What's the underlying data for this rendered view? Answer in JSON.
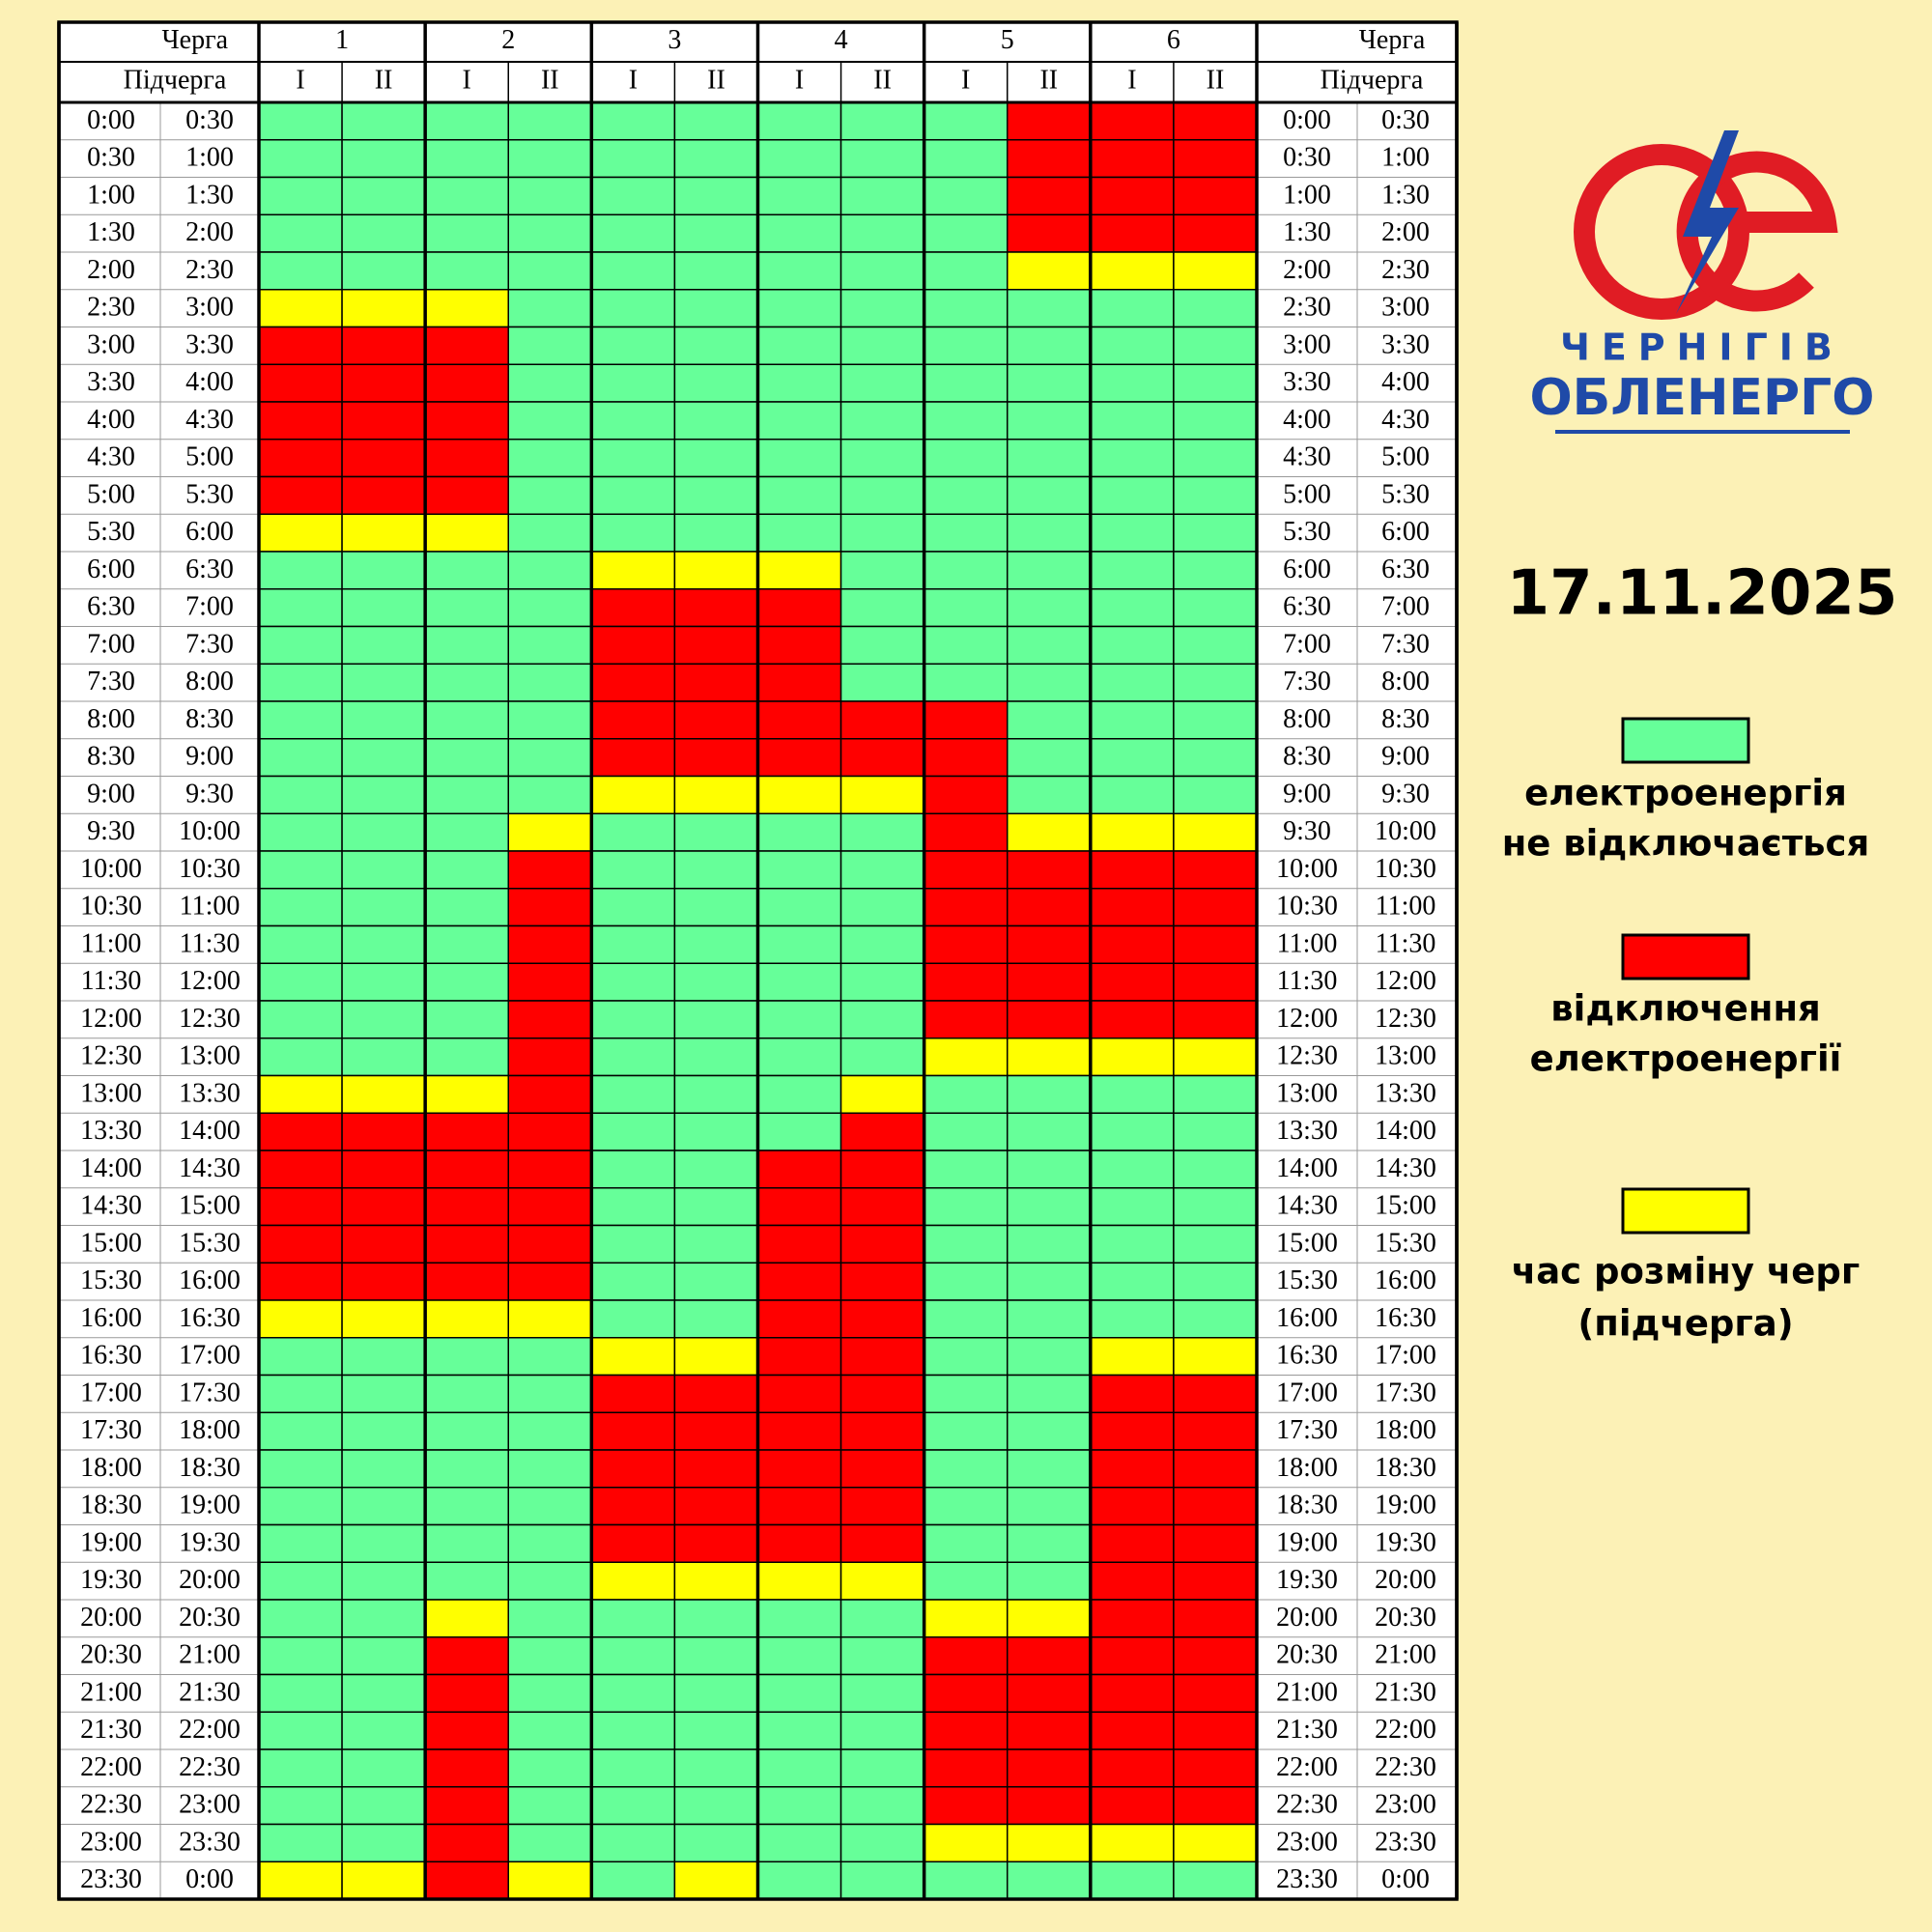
{
  "header": {
    "queue_label": "Черга",
    "subqueue_label": "Підчерга",
    "queues": [
      "1",
      "2",
      "3",
      "4",
      "5",
      "6"
    ],
    "subqueues": [
      "I",
      "II"
    ]
  },
  "rows": [
    {
      "start": "0:00",
      "end": "0:30",
      "status": "000000000111"
    },
    {
      "start": "0:30",
      "end": "1:00",
      "status": "000000000111"
    },
    {
      "start": "1:00",
      "end": "1:30",
      "status": "000000000111"
    },
    {
      "start": "1:30",
      "end": "2:00",
      "status": "000000000111"
    },
    {
      "start": "2:00",
      "end": "2:30",
      "status": "000000000222"
    },
    {
      "start": "2:30",
      "end": "3:00",
      "status": "222000000000"
    },
    {
      "start": "3:00",
      "end": "3:30",
      "status": "111000000000"
    },
    {
      "start": "3:30",
      "end": "4:00",
      "status": "111000000000"
    },
    {
      "start": "4:00",
      "end": "4:30",
      "status": "111000000000"
    },
    {
      "start": "4:30",
      "end": "5:00",
      "status": "111000000000"
    },
    {
      "start": "5:00",
      "end": "5:30",
      "status": "111000000000"
    },
    {
      "start": "5:30",
      "end": "6:00",
      "status": "222000000000"
    },
    {
      "start": "6:00",
      "end": "6:30",
      "status": "000022200000"
    },
    {
      "start": "6:30",
      "end": "7:00",
      "status": "000011100000"
    },
    {
      "start": "7:00",
      "end": "7:30",
      "status": "000011100000"
    },
    {
      "start": "7:30",
      "end": "8:00",
      "status": "000011100000"
    },
    {
      "start": "8:00",
      "end": "8:30",
      "status": "000011111000"
    },
    {
      "start": "8:30",
      "end": "9:00",
      "status": "000011111000"
    },
    {
      "start": "9:00",
      "end": "9:30",
      "status": "000022221000"
    },
    {
      "start": "9:30",
      "end": "10:00",
      "status": "000200001222"
    },
    {
      "start": "10:00",
      "end": "10:30",
      "status": "000100001111"
    },
    {
      "start": "10:30",
      "end": "11:00",
      "status": "000100001111"
    },
    {
      "start": "11:00",
      "end": "11:30",
      "status": "000100001111"
    },
    {
      "start": "11:30",
      "end": "12:00",
      "status": "000100001111"
    },
    {
      "start": "12:00",
      "end": "12:30",
      "status": "000100001111"
    },
    {
      "start": "12:30",
      "end": "13:00",
      "status": "000100002222"
    },
    {
      "start": "13:00",
      "end": "13:30",
      "status": "222100020000"
    },
    {
      "start": "13:30",
      "end": "14:00",
      "status": "111100010000"
    },
    {
      "start": "14:00",
      "end": "14:30",
      "status": "111100110000"
    },
    {
      "start": "14:30",
      "end": "15:00",
      "status": "111100110000"
    },
    {
      "start": "15:00",
      "end": "15:30",
      "status": "111100110000"
    },
    {
      "start": "15:30",
      "end": "16:00",
      "status": "111100110000"
    },
    {
      "start": "16:00",
      "end": "16:30",
      "status": "222200110000"
    },
    {
      "start": "16:30",
      "end": "17:00",
      "status": "000022110022"
    },
    {
      "start": "17:00",
      "end": "17:30",
      "status": "000011110011"
    },
    {
      "start": "17:30",
      "end": "18:00",
      "status": "000011110011"
    },
    {
      "start": "18:00",
      "end": "18:30",
      "status": "000011110011"
    },
    {
      "start": "18:30",
      "end": "19:00",
      "status": "000011110011"
    },
    {
      "start": "19:00",
      "end": "19:30",
      "status": "000011110011"
    },
    {
      "start": "19:30",
      "end": "20:00",
      "status": "000022220011"
    },
    {
      "start": "20:00",
      "end": "20:30",
      "status": "002000002211"
    },
    {
      "start": "20:30",
      "end": "21:00",
      "status": "001000001111"
    },
    {
      "start": "21:00",
      "end": "21:30",
      "status": "001000001111"
    },
    {
      "start": "21:30",
      "end": "22:00",
      "status": "001000001111"
    },
    {
      "start": "22:00",
      "end": "22:30",
      "status": "001000001111"
    },
    {
      "start": "22:30",
      "end": "23:00",
      "status": "001000001111"
    },
    {
      "start": "23:00",
      "end": "23:30",
      "status": "001000002222"
    },
    {
      "start": "23:30",
      "end": "0:00",
      "status": "221202000000"
    }
  ],
  "date": "17.11.2025",
  "legend": [
    {
      "color": "#66ff99",
      "label_lines": [
        "електроенергія",
        "не відключається"
      ]
    },
    {
      "color": "#ff0000",
      "label_lines": [
        "відключення",
        "електроенергії"
      ]
    },
    {
      "color": "#ffff00",
      "label_lines": [
        "час розміну черг",
        "(підчерга)"
      ]
    }
  ],
  "logo": {
    "line1": "ЧЕРНІГІВ",
    "line2": "ОБЛЕНЕРГО"
  }
}
